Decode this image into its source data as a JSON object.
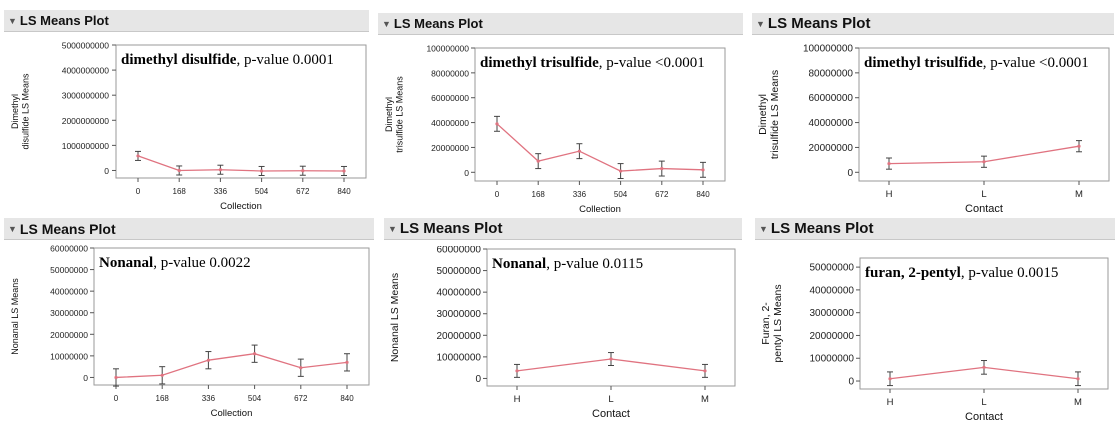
{
  "header_label": "LS Means Plot",
  "colors": {
    "line": "#e07380",
    "errorbar": "#444444",
    "header_bg": "#e6e6e6"
  },
  "chart_data": [
    {
      "type": "line",
      "title": "LS Means Plot",
      "annotation": {
        "compound": "dimethyl disulfide",
        "pvalue": ", p-value 0.0001"
      },
      "ylabel": [
        "Dimethyl",
        "disulfide LS Means"
      ],
      "xlabel": "Collection",
      "categories": [
        "0",
        "168",
        "336",
        "504",
        "672",
        "840"
      ],
      "values": [
        580000000,
        0,
        30000000,
        -20000000,
        -10000000,
        -20000000
      ],
      "error": [
        180000000,
        180000000,
        180000000,
        180000000,
        180000000,
        180000000
      ],
      "yticks": [
        "5000000000",
        "4000000000",
        "3000000000",
        "2000000000",
        "1000000000",
        "0"
      ],
      "ytick_values": [
        5000000000,
        4000000000,
        3000000000,
        2000000000,
        1000000000,
        0
      ],
      "ylim": [
        -300000000,
        5000000000
      ]
    },
    {
      "type": "line",
      "title": "LS Means Plot",
      "annotation": {
        "compound": "dimethyl trisulfide",
        "pvalue": ", p-value <0.0001"
      },
      "ylabel": [
        "Dimethyl",
        "trisulfide LS Means"
      ],
      "xlabel": "Collection",
      "categories": [
        "0",
        "168",
        "336",
        "504",
        "672",
        "840"
      ],
      "values": [
        39000000,
        9000000,
        17000000,
        1000000,
        3000000,
        2000000
      ],
      "error": [
        6000000,
        6000000,
        6000000,
        6000000,
        6000000,
        6000000
      ],
      "yticks": [
        "100000000",
        "80000000",
        "60000000",
        "40000000",
        "20000000",
        "0"
      ],
      "ytick_values": [
        100000000,
        80000000,
        60000000,
        40000000,
        20000000,
        0
      ],
      "ylim": [
        -7000000,
        100000000
      ]
    },
    {
      "type": "line",
      "title": "LS Means Plot",
      "annotation": {
        "compound": "dimethyl trisulfide",
        "pvalue": ", p-value <0.0001"
      },
      "ylabel": [
        "Dimethyl",
        "trisulfide LS Means"
      ],
      "xlabel": "Contact",
      "categories": [
        "H",
        "L",
        "M"
      ],
      "values": [
        7000000,
        8500000,
        21000000
      ],
      "error": [
        4500000,
        4500000,
        4500000
      ],
      "yticks": [
        "100000000",
        "80000000",
        "60000000",
        "40000000",
        "20000000",
        "0"
      ],
      "ytick_values": [
        100000000,
        80000000,
        60000000,
        40000000,
        20000000,
        0
      ],
      "ylim": [
        -7000000,
        100000000
      ]
    },
    {
      "type": "line",
      "title": "LS Means Plot",
      "annotation": {
        "compound": "Nonanal",
        "pvalue": ", p-value 0.0022"
      },
      "ylabel": [
        "Nonanal LS Means"
      ],
      "xlabel": "Collection",
      "categories": [
        "0",
        "168",
        "336",
        "504",
        "672",
        "840"
      ],
      "values": [
        0,
        1000000,
        8000000,
        11000000,
        4500000,
        7000000
      ],
      "error": [
        4000000,
        4000000,
        4000000,
        4000000,
        4000000,
        4000000
      ],
      "yticks": [
        "60000000",
        "50000000",
        "40000000",
        "30000000",
        "20000000",
        "10000000",
        "0"
      ],
      "ytick_values": [
        60000000,
        50000000,
        40000000,
        30000000,
        20000000,
        10000000,
        0
      ],
      "ylim": [
        -3500000,
        60000000
      ]
    },
    {
      "type": "line",
      "title": "LS Means Plot",
      "annotation": {
        "compound": "Nonanal",
        "pvalue": ", p-value 0.0115"
      },
      "ylabel": [
        "Nonanal LS Means"
      ],
      "xlabel": "Contact",
      "categories": [
        "H",
        "L",
        "M"
      ],
      "values": [
        3500000,
        9000000,
        3500000
      ],
      "error": [
        3000000,
        3000000,
        3000000
      ],
      "yticks": [
        "60000000",
        "50000000",
        "40000000",
        "30000000",
        "20000000",
        "10000000",
        "0"
      ],
      "ytick_values": [
        60000000,
        50000000,
        40000000,
        30000000,
        20000000,
        10000000,
        0
      ],
      "ylim": [
        -3500000,
        60000000
      ]
    },
    {
      "type": "line",
      "title": "LS Means Plot",
      "annotation": {
        "compound": "furan, 2-pentyl",
        "pvalue": ", p-value 0.0015"
      },
      "ylabel": [
        "Furan, 2-",
        "pentyl LS Means"
      ],
      "xlabel": "Contact",
      "categories": [
        "H",
        "L",
        "M"
      ],
      "values": [
        1000000,
        6000000,
        1000000
      ],
      "error": [
        3000000,
        3000000,
        3000000
      ],
      "yticks": [
        "50000000",
        "40000000",
        "30000000",
        "20000000",
        "10000000",
        "0"
      ],
      "ytick_values": [
        50000000,
        40000000,
        30000000,
        20000000,
        10000000,
        0
      ],
      "ylim": [
        -3500000,
        54000000
      ]
    }
  ]
}
